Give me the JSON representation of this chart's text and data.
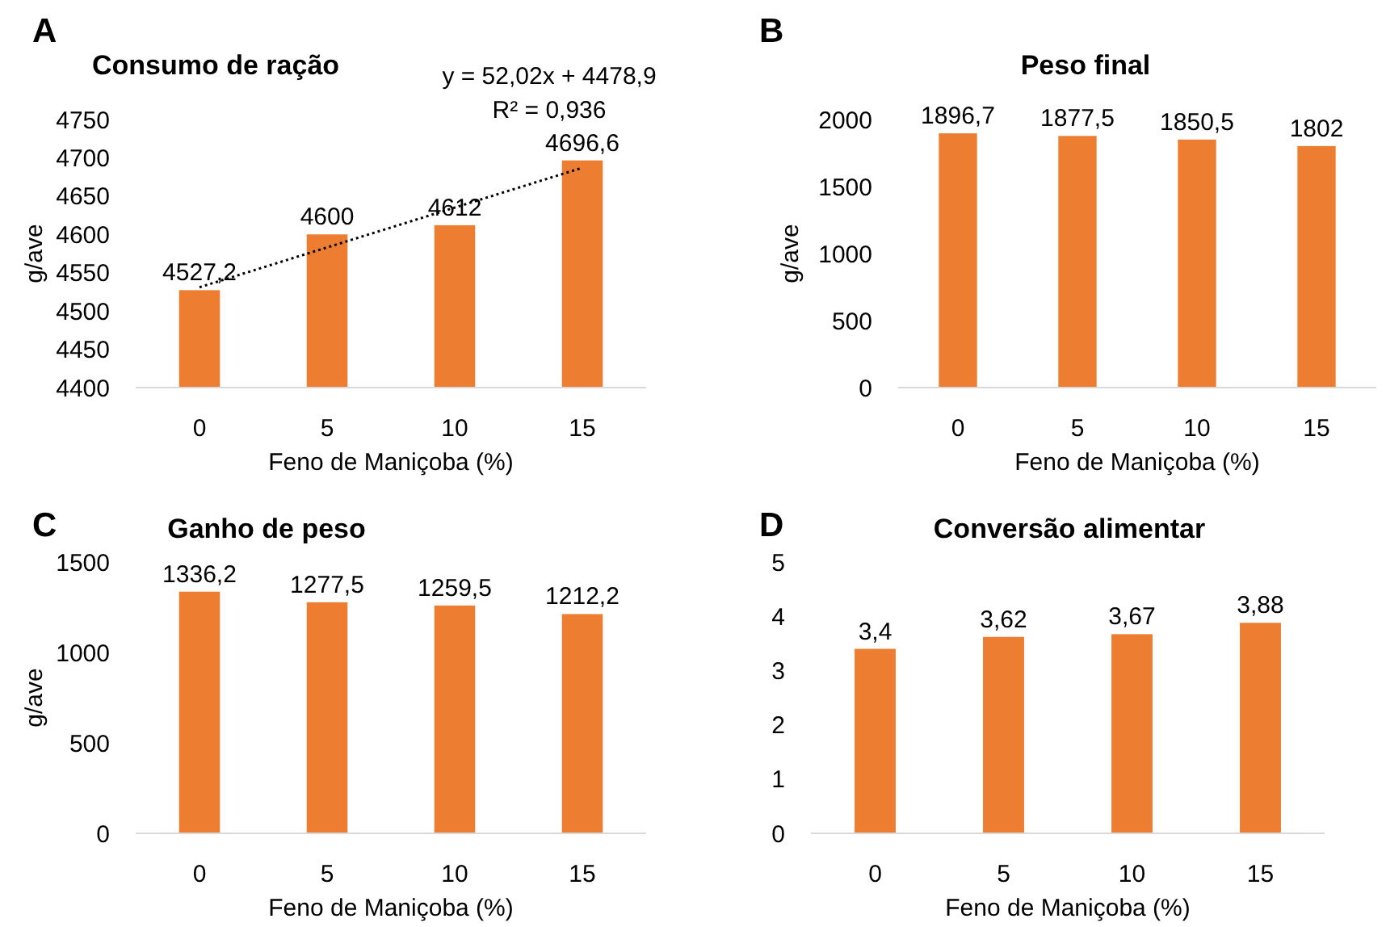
{
  "chart_data": [
    {
      "type": "bar",
      "title": "Consumo de ração",
      "xlabel": "Feno de Maniçoba (%)",
      "ylabel": "g/ave",
      "categories": [
        "0",
        "5",
        "10",
        "15"
      ],
      "ylim": [
        4400,
        4750
      ],
      "yticks": [
        4400,
        4450,
        4500,
        4550,
        4600,
        4650,
        4700,
        4750
      ],
      "annotations": [
        "A",
        "y = 52,02x + 4478,9",
        "R² = 0,936"
      ],
      "series": [
        {
          "type": "bar",
          "color": "#ed7d31",
          "values": [
            4527.2,
            4600,
            4612,
            4696.6
          ],
          "value_labels": [
            "4527,2",
            "4600",
            "4612",
            "4696,6"
          ]
        },
        {
          "type": "line",
          "color": "#000000",
          "values": [
            4531,
            4583,
            4635,
            4687
          ],
          "line_style": "dotted",
          "marker": "none"
        }
      ]
    },
    {
      "type": "bar",
      "title": "Peso final",
      "xlabel": "Feno de Maniçoba (%)",
      "ylabel": "g/ave",
      "categories": [
        "0",
        "5",
        "10",
        "15"
      ],
      "ylim": [
        0,
        2000
      ],
      "yticks": [
        0,
        500,
        1000,
        1500,
        2000
      ],
      "annotations": [
        "B"
      ],
      "color": "#ed7d31",
      "values": [
        1896.7,
        1877.5,
        1850.5,
        1802
      ],
      "value_labels": [
        "1896,7",
        "1877,5",
        "1850,5",
        "1802"
      ]
    },
    {
      "type": "bar",
      "title": "Ganho de peso",
      "xlabel": "Feno de Maniçoba (%)",
      "ylabel": "g/ave",
      "categories": [
        "0",
        "5",
        "10",
        "15"
      ],
      "ylim": [
        0,
        1500
      ],
      "yticks": [
        0,
        500,
        1000,
        1500
      ],
      "annotations": [
        "C"
      ],
      "color": "#ed7d31",
      "values": [
        1336.2,
        1277.5,
        1259.5,
        1212.2
      ],
      "value_labels": [
        "1336,2",
        "1277,5",
        "1259,5",
        "1212,2"
      ]
    },
    {
      "type": "bar",
      "title": "Conversão alimentar",
      "xlabel": "Feno de Maniçoba (%)",
      "categories": [
        "0",
        "5",
        "10",
        "15"
      ],
      "ylim": [
        0,
        5
      ],
      "yticks": [
        0,
        1,
        2,
        3,
        4,
        5
      ],
      "annotations": [
        "D"
      ],
      "color": "#ed7d31",
      "values": [
        3.4,
        3.62,
        3.67,
        3.88
      ],
      "value_labels": [
        "3,4",
        "3,62",
        "3,67",
        "3,88"
      ]
    }
  ]
}
